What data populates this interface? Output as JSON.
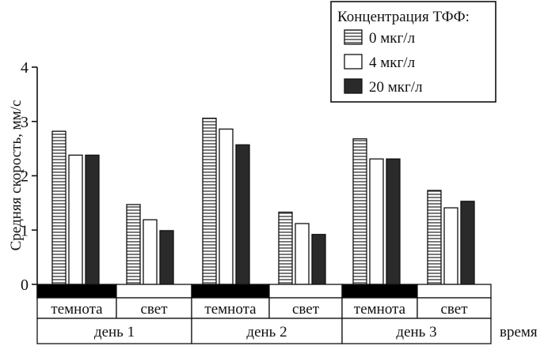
{
  "chart_data": {
    "type": "bar",
    "ylabel": "Средняя скорость, мм/с",
    "xlabel": "время",
    "ylim": [
      0,
      4
    ],
    "yticks": [
      0,
      1,
      2,
      3,
      4
    ],
    "grid": false,
    "legend_position": "top-right",
    "legend_title": "Концентрация ТФФ:",
    "series": [
      {
        "name": "0 мкг/л",
        "style": "hatched",
        "values": [
          2.82,
          1.47,
          3.06,
          1.33,
          2.68,
          1.73
        ]
      },
      {
        "name": "4 мкг/л",
        "style": "white",
        "values": [
          2.38,
          1.19,
          2.86,
          1.12,
          2.31,
          1.41
        ]
      },
      {
        "name": "20 мкг/л",
        "style": "dark",
        "values": [
          2.38,
          0.99,
          2.57,
          0.92,
          2.31,
          1.53
        ]
      }
    ],
    "categories": [
      "темнота",
      "свет",
      "темнота",
      "свет",
      "темнота",
      "свет"
    ],
    "category_phase": [
      "dark",
      "light",
      "dark",
      "light",
      "dark",
      "light"
    ],
    "days": [
      "день 1",
      "день 2",
      "день 3"
    ]
  },
  "colors": {
    "dark_fill": "#2a2a2a",
    "hatch": "#333333",
    "axis": "#111111",
    "white": "#ffffff"
  }
}
